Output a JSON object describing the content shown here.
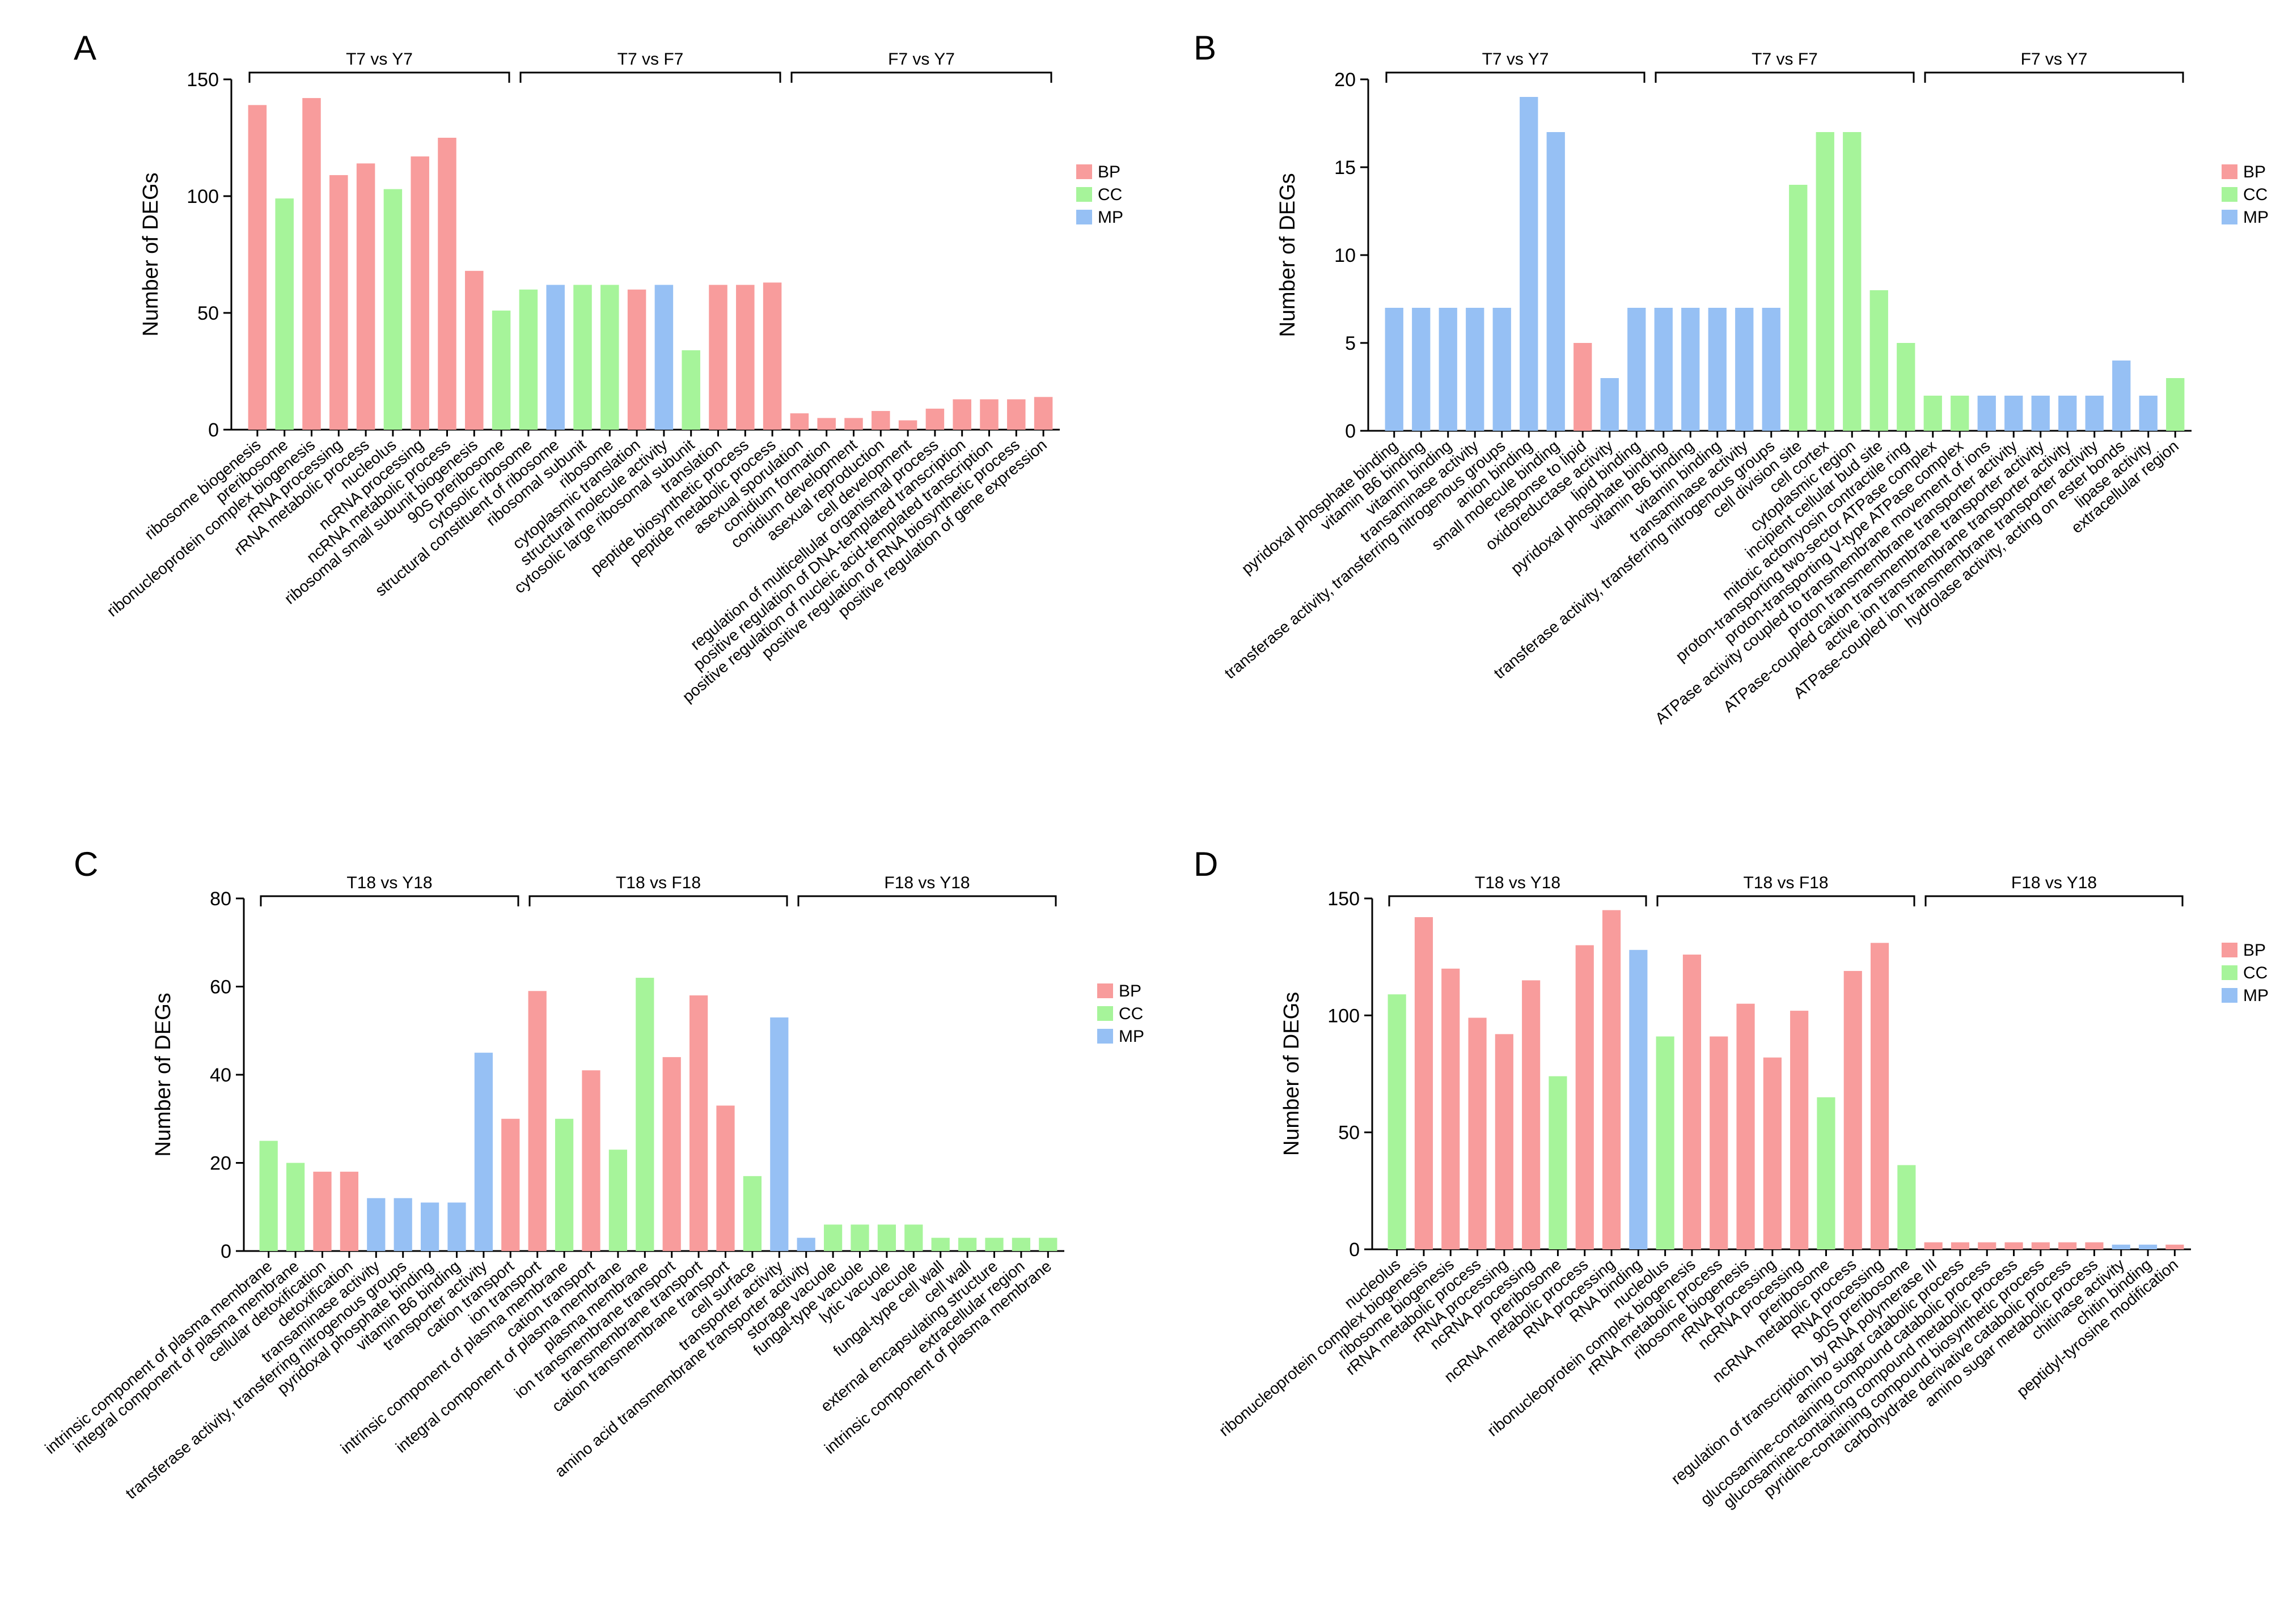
{
  "colors": {
    "BP": "#F89C9C",
    "CC": "#A6F49A",
    "MP": "#96C0F4",
    "axis": "#000000"
  },
  "chart_data": [
    {
      "panel": "A",
      "type": "bar",
      "ylabel": "Number of DEGs",
      "ylim": [
        0,
        150
      ],
      "yticks": [
        0,
        50,
        100,
        150
      ],
      "legend": {
        "placement": "right",
        "entries": [
          "BP",
          "CC",
          "MP"
        ]
      },
      "groups": [
        {
          "label": "T7 vs Y7",
          "start": 0,
          "end": 10
        },
        {
          "label": "T7 vs F7",
          "start": 10,
          "end": 20
        },
        {
          "label": "F7 vs Y7",
          "start": 20,
          "end": 30
        }
      ],
      "categories": [
        "ribosome biogenesis",
        "preribosome",
        "ribonucleoprotein complex biogenesis",
        "rRNA processing",
        "rRNA metabolic process",
        "nucleolus",
        "ncRNA processing",
        "ncRNA metabolic process",
        "ribosomal small subunit biogenesis",
        "90S preribosome",
        "cytosolic ribosome",
        "structural constituent of ribosome",
        "ribosomal subunit",
        "ribosome",
        "cytoplasmic translation",
        "structural molecule activity",
        "cytosolic large ribosomal subunit",
        "translation",
        "peptide biosynthetic process",
        "peptide metabolic process",
        "asexual sporulation",
        "conidium formation",
        "conidium development",
        "asexual reproduction",
        "cell development",
        "regulation of multicellular organismal process",
        "positive regulation of DNA-templated transcription",
        "positive regulation of nucleic acid-templated transcription",
        "positive regulation of RNA biosynthetic process",
        "positive regulation of gene expression"
      ],
      "classes": [
        "BP",
        "CC",
        "BP",
        "BP",
        "BP",
        "CC",
        "BP",
        "BP",
        "BP",
        "CC",
        "CC",
        "MP",
        "CC",
        "CC",
        "BP",
        "MP",
        "CC",
        "BP",
        "BP",
        "BP",
        "BP",
        "BP",
        "BP",
        "BP",
        "BP",
        "BP",
        "BP",
        "BP",
        "BP",
        "BP"
      ],
      "values": [
        139,
        99,
        142,
        109,
        114,
        103,
        117,
        125,
        68,
        51,
        60,
        62,
        62,
        62,
        60,
        62,
        34,
        62,
        62,
        63,
        7,
        5,
        5,
        8,
        4,
        9,
        13,
        13,
        13,
        14
      ]
    },
    {
      "panel": "B",
      "type": "bar",
      "ylabel": "Number of DEGs",
      "ylim": [
        0,
        20
      ],
      "yticks": [
        0,
        5,
        10,
        15,
        20
      ],
      "legend": {
        "placement": "right",
        "entries": [
          "BP",
          "CC",
          "MP"
        ]
      },
      "groups": [
        {
          "label": "T7 vs Y7",
          "start": 0,
          "end": 10
        },
        {
          "label": "T7 vs F7",
          "start": 10,
          "end": 20
        },
        {
          "label": "F7 vs Y7",
          "start": 20,
          "end": 30
        }
      ],
      "categories": [
        "pyridoxal phosphate binding",
        "vitamin B6 binding",
        "vitamin binding",
        "transaminase activity",
        "transferase activity, transferring nitrogenous groups",
        "anion binding",
        "small molecule binding",
        "response to lipid",
        "oxidoreductase activity",
        "lipid binding",
        "pyridoxal phosphate binding",
        "vitamin B6 binding",
        "vitamin binding",
        "transaminase activity",
        "transferase activity, transferring nitrogenous groups",
        "cell division site",
        "cell cortex",
        "cytoplasmic region",
        "incipient cellular bud site",
        "mitotic actomyosin contractile ring",
        "proton-transporting two-sector ATPase complex",
        "proton-transporting V-type ATPase complex",
        "ATPase activity coupled to transmembrane movement of ions",
        "proton transmembrane transporter activity",
        "ATPase-coupled cation transmembrane transporter activity",
        "active ion transmembrane transporter activity",
        "ATPase-coupled ion transmembrane transporter activity",
        "hydrolase activity, acting on ester bonds",
        "lipase activity",
        "extracellular region"
      ],
      "classes": [
        "MP",
        "MP",
        "MP",
        "MP",
        "MP",
        "MP",
        "MP",
        "BP",
        "MP",
        "MP",
        "MP",
        "MP",
        "MP",
        "MP",
        "MP",
        "CC",
        "CC",
        "CC",
        "CC",
        "CC",
        "CC",
        "CC",
        "MP",
        "MP",
        "MP",
        "MP",
        "MP",
        "MP",
        "MP",
        "CC"
      ],
      "values": [
        7,
        7,
        7,
        7,
        7,
        19,
        17,
        5,
        3,
        7,
        7,
        7,
        7,
        7,
        7,
        14,
        17,
        17,
        8,
        5,
        2,
        2,
        2,
        2,
        2,
        2,
        2,
        4,
        2,
        3
      ]
    },
    {
      "panel": "C",
      "type": "bar",
      "ylabel": "Number of DEGs",
      "ylim": [
        0,
        80
      ],
      "yticks": [
        0,
        20,
        40,
        60,
        80
      ],
      "legend": {
        "placement": "right",
        "entries": [
          "BP",
          "CC",
          "MP"
        ]
      },
      "groups": [
        {
          "label": "T18 vs Y18",
          "start": 0,
          "end": 10
        },
        {
          "label": "T18 vs F18",
          "start": 10,
          "end": 20
        },
        {
          "label": "F18 vs Y18",
          "start": 20,
          "end": 30
        }
      ],
      "categories": [
        "intrinsic component of plasma membrane",
        "integral component of plasma membrane",
        "cellular detoxification",
        "detoxification",
        "transaminase activity",
        "transferase activity, transferring nitrogenous groups",
        "pyridoxal phosphate binding",
        "vitamin B6 binding",
        "transporter activity",
        "cation transport",
        "ion transport",
        "intrinsic component of plasma membrane",
        "cation transport",
        "integral component of plasma membrane",
        "plasma membrane",
        "ion transmembrane transport",
        "transmembrane transport",
        "cation transmembrane transport",
        "cell surface",
        "transporter activity",
        "amino acid transmembrane transporter activity",
        "storage vacuole",
        "fungal-type vacuole",
        "lytic vacuole",
        "vacuole",
        "fungal-type cell wall",
        "cell wall",
        "external encapsulating structure",
        "extracellular region",
        "intrinsic component of plasma membrane"
      ],
      "classes": [
        "CC",
        "CC",
        "BP",
        "BP",
        "MP",
        "MP",
        "MP",
        "MP",
        "MP",
        "BP",
        "BP",
        "CC",
        "BP",
        "CC",
        "CC",
        "BP",
        "BP",
        "BP",
        "CC",
        "MP",
        "MP",
        "CC",
        "CC",
        "CC",
        "CC",
        "CC",
        "CC",
        "CC",
        "CC",
        "CC"
      ],
      "values": [
        25,
        20,
        18,
        18,
        12,
        12,
        11,
        11,
        45,
        30,
        59,
        30,
        41,
        23,
        62,
        44,
        58,
        33,
        17,
        53,
        3,
        6,
        6,
        6,
        6,
        3,
        3,
        3,
        3,
        3
      ]
    },
    {
      "panel": "D",
      "type": "bar",
      "ylabel": "Number of DEGs",
      "ylim": [
        0,
        150
      ],
      "yticks": [
        0,
        50,
        100,
        150
      ],
      "legend": {
        "placement": "right",
        "entries": [
          "BP",
          "CC",
          "MP"
        ]
      },
      "groups": [
        {
          "label": "T18 vs Y18",
          "start": 0,
          "end": 10
        },
        {
          "label": "T18 vs F18",
          "start": 10,
          "end": 20
        },
        {
          "label": "F18 vs Y18",
          "start": 20,
          "end": 30
        }
      ],
      "categories": [
        "nucleolus",
        "ribonucleoprotein complex biogenesis",
        "ribosome biogenesis",
        "rRNA metabolic process",
        "rRNA processing",
        "ncRNA processing",
        "preribosome",
        "ncRNA metabolic process",
        "RNA processing",
        "RNA binding",
        "nucleolus",
        "ribonucleoprotein complex biogenesis",
        "rRNA metabolic process",
        "ribosome biogenesis",
        "rRNA processing",
        "ncRNA processing",
        "preribosome",
        "ncRNA metabolic process",
        "RNA processing",
        "90S preribosome",
        "regulation of transcription by RNA polymerase III",
        "amino sugar catabolic process",
        "glucosamine-containing compound catabolic process",
        "glucosamine-containing compound metabolic process",
        "pyridine-containing compound biosynthetic process",
        "carbohydrate derivative catabolic process",
        "amino sugar metabolic process",
        "chitinase activity",
        "chitin binding",
        "peptidyl-tyrosine modification"
      ],
      "classes": [
        "CC",
        "BP",
        "BP",
        "BP",
        "BP",
        "BP",
        "CC",
        "BP",
        "BP",
        "MP",
        "CC",
        "BP",
        "BP",
        "BP",
        "BP",
        "BP",
        "CC",
        "BP",
        "BP",
        "CC",
        "BP",
        "BP",
        "BP",
        "BP",
        "BP",
        "BP",
        "BP",
        "MP",
        "MP",
        "BP"
      ],
      "values": [
        109,
        142,
        120,
        99,
        92,
        115,
        74,
        130,
        145,
        128,
        91,
        126,
        91,
        105,
        82,
        102,
        65,
        119,
        131,
        36,
        3,
        3,
        3,
        3,
        3,
        3,
        3,
        2,
        2,
        2
      ]
    }
  ]
}
